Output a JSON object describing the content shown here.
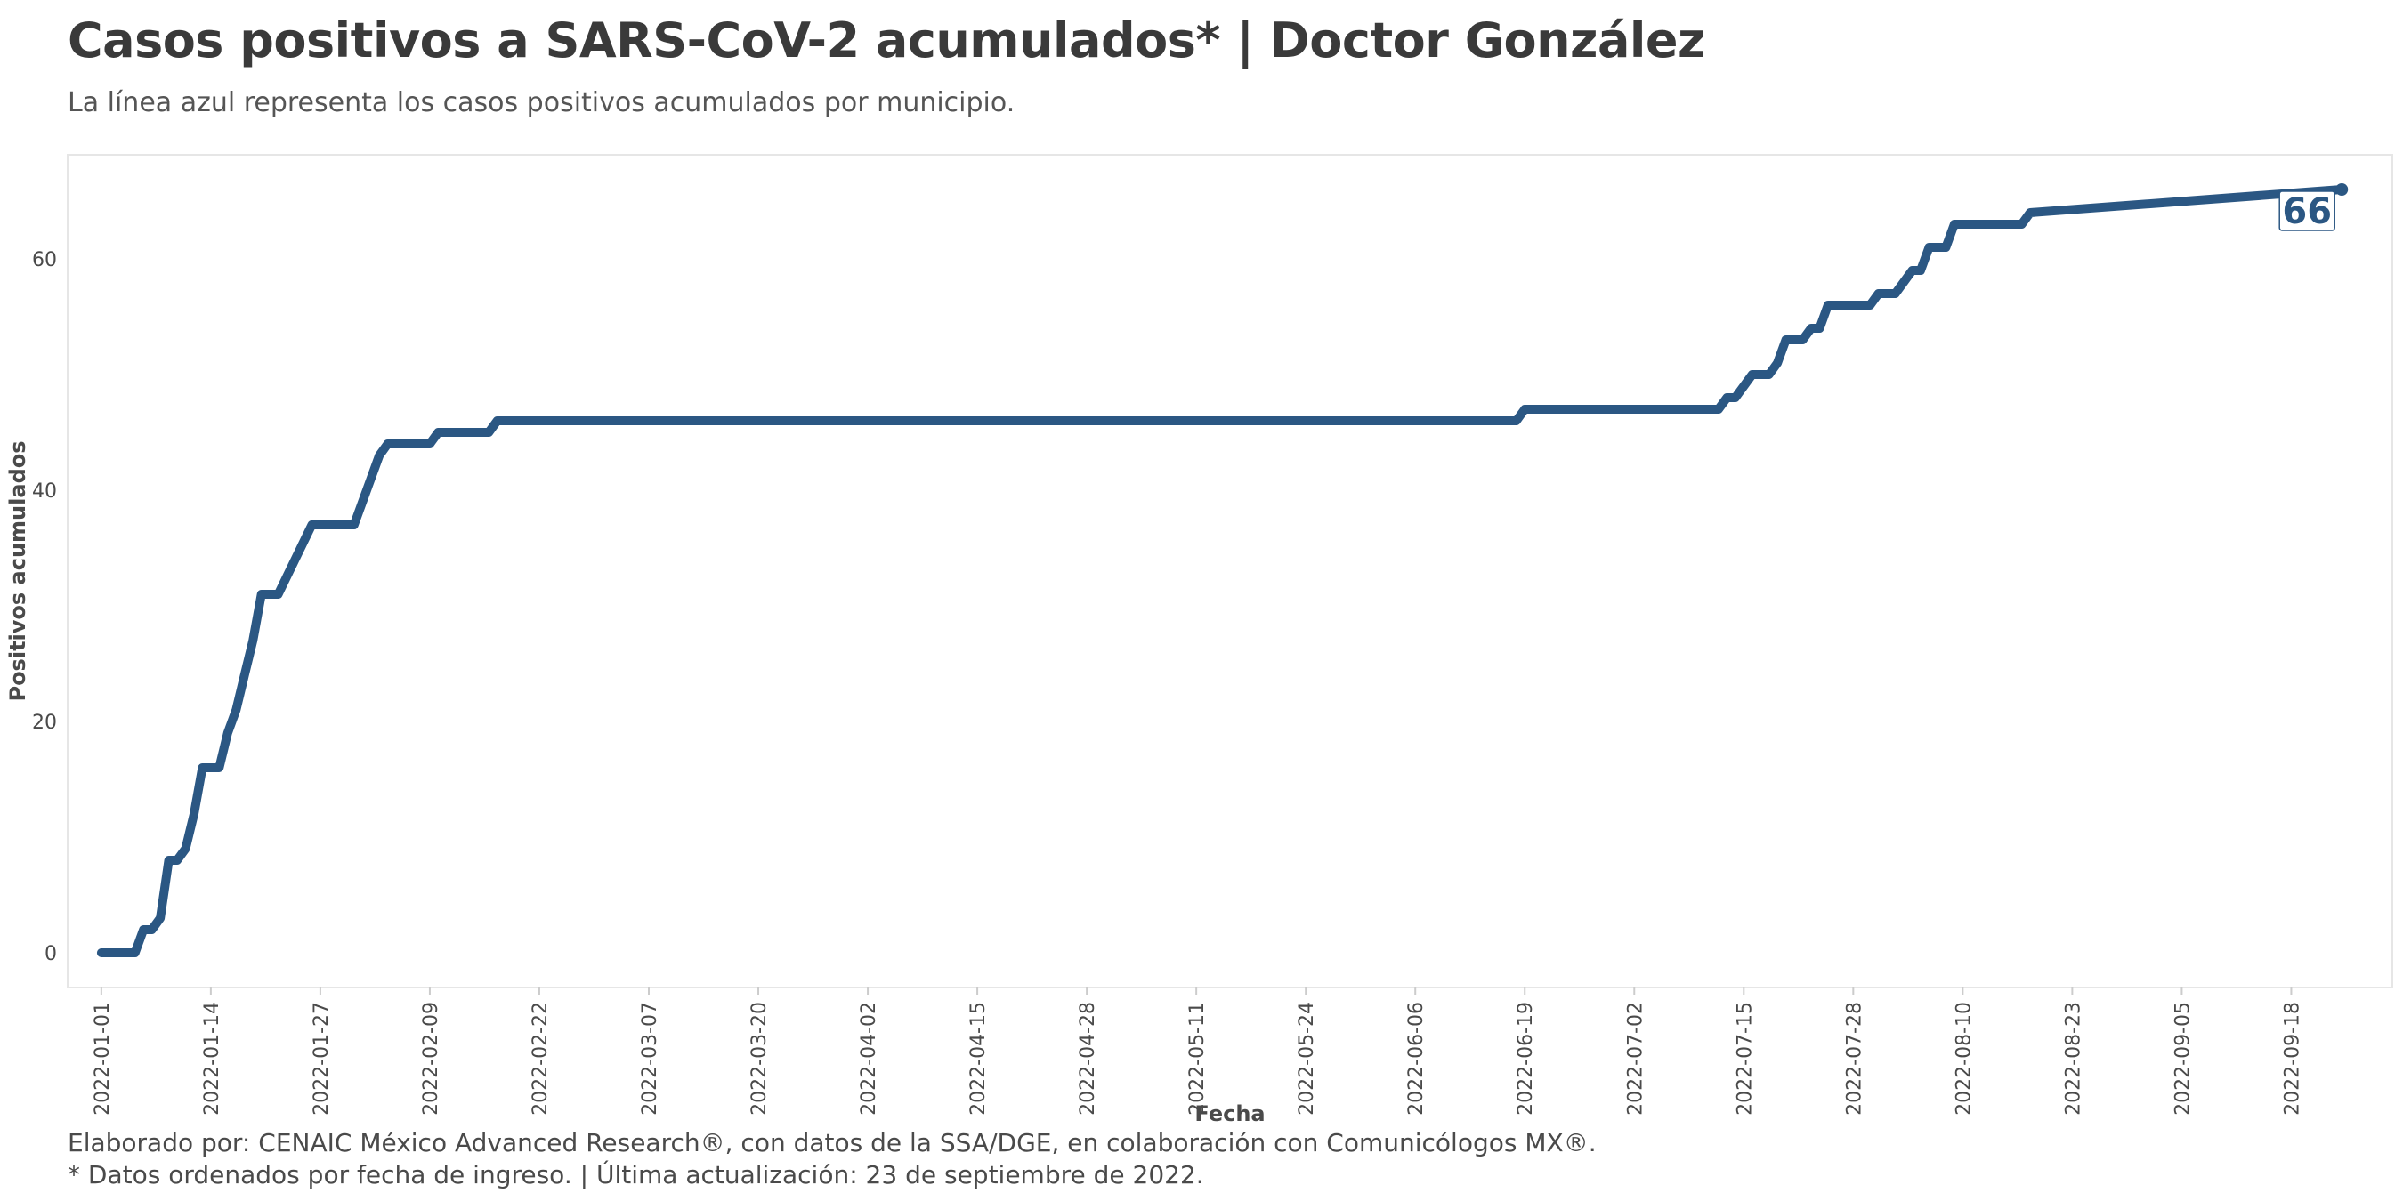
{
  "title": "Casos positivos a SARS-CoV-2 acumulados* | Doctor González",
  "subtitle": "La línea azul representa los casos positivos acumulados por municipio.",
  "caption_line1": "Elaborado por: CENAIC México Advanced Research®, con datos de la SSA/DGE, en colaboración con Comunicólogos MX®.",
  "caption_line2": "* Datos ordenados por fecha de ingreso. | Última actualización: 23 de septiembre de 2022.",
  "colors": {
    "line": "#2b5783",
    "panel_border": "#e6e6e6",
    "text": "#3d3d3d"
  },
  "chart_data": {
    "type": "line",
    "title": "Casos positivos a SARS-CoV-2 acumulados* | Doctor González",
    "subtitle": "La línea azul representa los casos positivos acumulados por municipio.",
    "xlabel": "Fecha",
    "ylabel": "Positivos acumulados",
    "xlim": [
      "2021-12-28",
      "2022-09-30"
    ],
    "ylim": [
      -3,
      69
    ],
    "x_ticks": [
      "2022-01-01",
      "2022-01-14",
      "2022-01-27",
      "2022-02-09",
      "2022-02-22",
      "2022-03-07",
      "2022-03-20",
      "2022-04-02",
      "2022-04-15",
      "2022-04-28",
      "2022-05-11",
      "2022-05-24",
      "2022-06-06",
      "2022-06-19",
      "2022-07-02",
      "2022-07-15",
      "2022-07-28",
      "2022-08-10",
      "2022-08-23",
      "2022-09-05",
      "2022-09-18"
    ],
    "y_ticks": [
      0,
      20,
      40,
      60
    ],
    "grid": false,
    "legend": "none",
    "end_label": "66",
    "series": [
      {
        "x": [
          "2022-01-01",
          "2022-01-05",
          "2022-01-06",
          "2022-01-07",
          "2022-01-08",
          "2022-01-09",
          "2022-01-10",
          "2022-01-11",
          "2022-01-12",
          "2022-01-13",
          "2022-01-14",
          "2022-01-15",
          "2022-01-16",
          "2022-01-17",
          "2022-01-18",
          "2022-01-19",
          "2022-01-20",
          "2022-01-21",
          "2022-01-22",
          "2022-01-24",
          "2022-01-26",
          "2022-01-27",
          "2022-01-31",
          "2022-02-03",
          "2022-02-04",
          "2022-02-05",
          "2022-02-09",
          "2022-02-10",
          "2022-02-16",
          "2022-02-17",
          "2022-06-18",
          "2022-06-19",
          "2022-07-12",
          "2022-07-13",
          "2022-07-14",
          "2022-07-16",
          "2022-07-18",
          "2022-07-19",
          "2022-07-20",
          "2022-07-22",
          "2022-07-23",
          "2022-07-24",
          "2022-07-25",
          "2022-07-26",
          "2022-07-30",
          "2022-07-31",
          "2022-08-02",
          "2022-08-03",
          "2022-08-04",
          "2022-08-05",
          "2022-08-06",
          "2022-08-08",
          "2022-08-09",
          "2022-08-16",
          "2022-08-17",
          "2022-08-18",
          "2022-09-24"
        ],
        "y": [
          0,
          0,
          2,
          2,
          3,
          8,
          8,
          9,
          12,
          16,
          16,
          16,
          19,
          21,
          24,
          27,
          31,
          31,
          31,
          34,
          37,
          37,
          37,
          43,
          44,
          44,
          44,
          45,
          45,
          46,
          46,
          47,
          47,
          48,
          48,
          50,
          50,
          51,
          53,
          53,
          54,
          54,
          56,
          56,
          56,
          57,
          57,
          58,
          59,
          59,
          61,
          61,
          63,
          63,
          63,
          64,
          66
        ]
      }
    ]
  }
}
